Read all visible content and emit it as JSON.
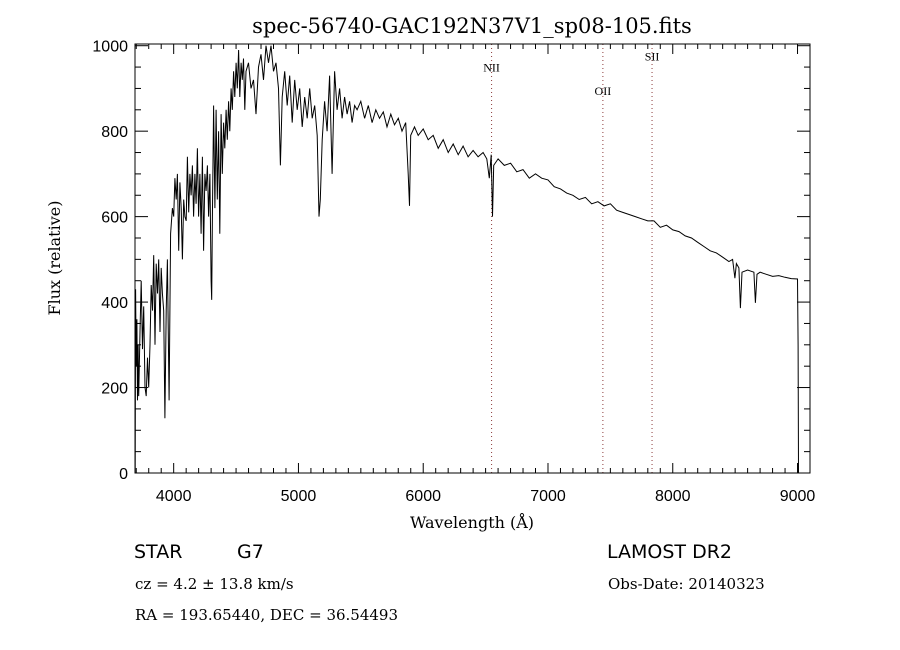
{
  "chart_data": {
    "type": "line",
    "title": "spec-56740-GAC192N37V1_sp08-105.fits",
    "xlabel": "Wavelength (Å)",
    "ylabel": "Flux (relative)",
    "xlim": [
      3690,
      9100
    ],
    "ylim": [
      0,
      1004
    ],
    "x_ticks": [
      4000,
      5000,
      6000,
      7000,
      8000,
      9000
    ],
    "x_tick_labels": [
      "4000",
      "5000",
      "6000",
      "7000",
      "8000",
      "9000"
    ],
    "x_minor_step": 100,
    "y_ticks": [
      0,
      200,
      400,
      600,
      800,
      1000
    ],
    "y_tick_labels": [
      "0",
      "200",
      "400",
      "600",
      "800",
      "1000"
    ],
    "y_minor_step": 50,
    "grid": false,
    "line_color": "#000000",
    "marker_color": "#8b3a3a",
    "lines": [
      {
        "label": "NII",
        "wavelength": 6548,
        "label_flux": 940
      },
      {
        "label": "OII",
        "wavelength": 7440,
        "label_flux": 885
      },
      {
        "label": "SII",
        "wavelength": 7834,
        "label_flux": 965
      }
    ],
    "series": [
      {
        "name": "spectrum",
        "points": [
          [
            3692,
            0
          ],
          [
            3695,
            430
          ],
          [
            3700,
            250
          ],
          [
            3705,
            360
          ],
          [
            3710,
            170
          ],
          [
            3715,
            300
          ],
          [
            3720,
            180
          ],
          [
            3730,
            330
          ],
          [
            3740,
            450
          ],
          [
            3750,
            290
          ],
          [
            3760,
            390
          ],
          [
            3770,
            200
          ],
          [
            3780,
            180
          ],
          [
            3790,
            270
          ],
          [
            3800,
            200
          ],
          [
            3810,
            300
          ],
          [
            3820,
            440
          ],
          [
            3830,
            380
          ],
          [
            3840,
            510
          ],
          [
            3850,
            300
          ],
          [
            3860,
            490
          ],
          [
            3870,
            420
          ],
          [
            3880,
            500
          ],
          [
            3890,
            330
          ],
          [
            3900,
            480
          ],
          [
            3910,
            420
          ],
          [
            3920,
            380
          ],
          [
            3930,
            128
          ],
          [
            3940,
            380
          ],
          [
            3950,
            500
          ],
          [
            3963,
            170
          ],
          [
            3975,
            560
          ],
          [
            3990,
            620
          ],
          [
            4000,
            600
          ],
          [
            4010,
            690
          ],
          [
            4020,
            640
          ],
          [
            4030,
            700
          ],
          [
            4040,
            520
          ],
          [
            4050,
            680
          ],
          [
            4060,
            620
          ],
          [
            4070,
            500
          ],
          [
            4080,
            640
          ],
          [
            4090,
            600
          ],
          [
            4100,
            590
          ],
          [
            4110,
            740
          ],
          [
            4120,
            610
          ],
          [
            4130,
            700
          ],
          [
            4140,
            650
          ],
          [
            4150,
            720
          ],
          [
            4160,
            600
          ],
          [
            4170,
            700
          ],
          [
            4180,
            630
          ],
          [
            4190,
            760
          ],
          [
            4200,
            600
          ],
          [
            4210,
            700
          ],
          [
            4220,
            560
          ],
          [
            4230,
            740
          ],
          [
            4240,
            520
          ],
          [
            4250,
            700
          ],
          [
            4260,
            660
          ],
          [
            4270,
            720
          ],
          [
            4280,
            600
          ],
          [
            4290,
            700
          ],
          [
            4300,
            450
          ],
          [
            4305,
            405
          ],
          [
            4310,
            600
          ],
          [
            4320,
            860
          ],
          [
            4330,
            620
          ],
          [
            4340,
            850
          ],
          [
            4350,
            640
          ],
          [
            4360,
            800
          ],
          [
            4370,
            560
          ],
          [
            4380,
            840
          ],
          [
            4390,
            700
          ],
          [
            4400,
            820
          ],
          [
            4410,
            760
          ],
          [
            4420,
            850
          ],
          [
            4430,
            780
          ],
          [
            4440,
            870
          ],
          [
            4450,
            800
          ],
          [
            4460,
            900
          ],
          [
            4470,
            850
          ],
          [
            4480,
            940
          ],
          [
            4490,
            880
          ],
          [
            4500,
            960
          ],
          [
            4510,
            900
          ],
          [
            4520,
            990
          ],
          [
            4530,
            880
          ],
          [
            4540,
            960
          ],
          [
            4550,
            920
          ],
          [
            4560,
            970
          ],
          [
            4570,
            850
          ],
          [
            4580,
            940
          ],
          [
            4600,
            960
          ],
          [
            4620,
            900
          ],
          [
            4640,
            920
          ],
          [
            4660,
            840
          ],
          [
            4680,
            950
          ],
          [
            4700,
            980
          ],
          [
            4720,
            920
          ],
          [
            4740,
            1000
          ],
          [
            4760,
            960
          ],
          [
            4780,
            1000
          ],
          [
            4800,
            940
          ],
          [
            4820,
            960
          ],
          [
            4840,
            900
          ],
          [
            4855,
            720
          ],
          [
            4870,
            880
          ],
          [
            4890,
            940
          ],
          [
            4910,
            860
          ],
          [
            4930,
            930
          ],
          [
            4950,
            820
          ],
          [
            4970,
            920
          ],
          [
            4990,
            850
          ],
          [
            5010,
            900
          ],
          [
            5030,
            810
          ],
          [
            5050,
            880
          ],
          [
            5070,
            830
          ],
          [
            5090,
            900
          ],
          [
            5110,
            830
          ],
          [
            5130,
            860
          ],
          [
            5150,
            790
          ],
          [
            5165,
            600
          ],
          [
            5175,
            640
          ],
          [
            5190,
            780
          ],
          [
            5210,
            870
          ],
          [
            5230,
            800
          ],
          [
            5250,
            930
          ],
          [
            5270,
            700
          ],
          [
            5290,
            940
          ],
          [
            5310,
            850
          ],
          [
            5330,
            900
          ],
          [
            5350,
            830
          ],
          [
            5370,
            880
          ],
          [
            5390,
            840
          ],
          [
            5410,
            870
          ],
          [
            5430,
            820
          ],
          [
            5450,
            860
          ],
          [
            5470,
            850
          ],
          [
            5500,
            870
          ],
          [
            5530,
            830
          ],
          [
            5560,
            860
          ],
          [
            5590,
            820
          ],
          [
            5620,
            850
          ],
          [
            5650,
            830
          ],
          [
            5680,
            845
          ],
          [
            5710,
            810
          ],
          [
            5740,
            840
          ],
          [
            5770,
            815
          ],
          [
            5800,
            830
          ],
          [
            5830,
            800
          ],
          [
            5860,
            820
          ],
          [
            5880,
            700
          ],
          [
            5890,
            625
          ],
          [
            5900,
            790
          ],
          [
            5930,
            810
          ],
          [
            5960,
            790
          ],
          [
            6000,
            805
          ],
          [
            6040,
            780
          ],
          [
            6080,
            790
          ],
          [
            6120,
            760
          ],
          [
            6160,
            780
          ],
          [
            6200,
            750
          ],
          [
            6240,
            770
          ],
          [
            6280,
            745
          ],
          [
            6320,
            765
          ],
          [
            6360,
            740
          ],
          [
            6400,
            755
          ],
          [
            6440,
            740
          ],
          [
            6480,
            750
          ],
          [
            6510,
            735
          ],
          [
            6530,
            690
          ],
          [
            6545,
            745
          ],
          [
            6555,
            600
          ],
          [
            6565,
            720
          ],
          [
            6600,
            735
          ],
          [
            6650,
            720
          ],
          [
            6700,
            725
          ],
          [
            6750,
            705
          ],
          [
            6800,
            710
          ],
          [
            6850,
            690
          ],
          [
            6900,
            700
          ],
          [
            6950,
            690
          ],
          [
            7000,
            686
          ],
          [
            7050,
            670
          ],
          [
            7100,
            665
          ],
          [
            7150,
            655
          ],
          [
            7200,
            650
          ],
          [
            7250,
            640
          ],
          [
            7300,
            645
          ],
          [
            7350,
            630
          ],
          [
            7400,
            635
          ],
          [
            7450,
            625
          ],
          [
            7500,
            630
          ],
          [
            7550,
            615
          ],
          [
            7600,
            610
          ],
          [
            7650,
            605
          ],
          [
            7700,
            600
          ],
          [
            7750,
            595
          ],
          [
            7800,
            590
          ],
          [
            7850,
            590
          ],
          [
            7900,
            575
          ],
          [
            7950,
            580
          ],
          [
            8000,
            569
          ],
          [
            8050,
            565
          ],
          [
            8100,
            555
          ],
          [
            8150,
            550
          ],
          [
            8200,
            540
          ],
          [
            8250,
            530
          ],
          [
            8300,
            520
          ],
          [
            8350,
            515
          ],
          [
            8400,
            505
          ],
          [
            8450,
            495
          ],
          [
            8480,
            500
          ],
          [
            8498,
            456
          ],
          [
            8510,
            490
          ],
          [
            8530,
            480
          ],
          [
            8542,
            386
          ],
          [
            8555,
            470
          ],
          [
            8600,
            475
          ],
          [
            8650,
            470
          ],
          [
            8662,
            398
          ],
          [
            8675,
            465
          ],
          [
            8700,
            470
          ],
          [
            8750,
            465
          ],
          [
            8800,
            460
          ],
          [
            8850,
            462
          ],
          [
            8900,
            458
          ],
          [
            8950,
            455
          ],
          [
            9000,
            454
          ],
          [
            9005,
            300
          ],
          [
            9008,
            0
          ]
        ]
      }
    ]
  },
  "info": {
    "object_class": "STAR",
    "subclass": "G7",
    "survey": "LAMOST DR2",
    "redshift": "cz = 4.2 ± 13.8 km/s",
    "obs_date": "Obs-Date: 20140323",
    "coords": "RA = 193.65440, DEC =  36.54493"
  }
}
